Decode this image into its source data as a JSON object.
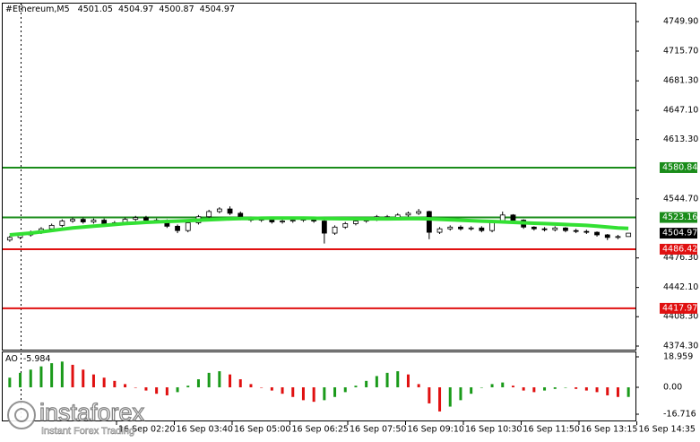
{
  "chart_data": {
    "type": "candlestick",
    "title": "#Ethereum,M5",
    "open": [
      4497,
      4500,
      4503,
      4506,
      4510,
      4514,
      4519,
      4521,
      4518,
      4520,
      4516,
      4517,
      4521,
      4523,
      4520,
      4519,
      4513,
      4508,
      4517,
      4524,
      4530,
      4533,
      4528,
      4522,
      4520,
      4521,
      4518,
      4519,
      4520,
      4521,
      4519,
      4505,
      4512,
      4516,
      4519,
      4521,
      4524,
      4522,
      4526,
      4528,
      4530,
      4506,
      4510,
      4512,
      4510,
      4511,
      4508,
      4518,
      4526,
      4520,
      4512,
      4510,
      4509,
      4511,
      4508,
      4507,
      4506,
      4503,
      4500,
      4501.05
    ],
    "high": [
      4502,
      4505,
      4508,
      4512,
      4516,
      4521,
      4523,
      4523,
      4522,
      4522,
      4519,
      4523,
      4525,
      4525,
      4522,
      4521,
      4515,
      4519,
      4526,
      4532,
      4535,
      4536,
      4530,
      4524,
      4523,
      4523,
      4521,
      4522,
      4523,
      4523,
      4521,
      4514,
      4518,
      4521,
      4523,
      4526,
      4526,
      4528,
      4530,
      4533,
      4531,
      4512,
      4514,
      4514,
      4513,
      4513,
      4520,
      4530,
      4527,
      4521,
      4513,
      4512,
      4513,
      4512,
      4510,
      4509,
      4507,
      4504,
      4503,
      4504.97
    ],
    "low": [
      4495,
      4498,
      4501,
      4504,
      4508,
      4512,
      4517,
      4516,
      4516,
      4514,
      4514,
      4515,
      4519,
      4518,
      4517,
      4511,
      4505,
      4506,
      4515,
      4522,
      4528,
      4526,
      4520,
      4518,
      4518,
      4516,
      4516,
      4517,
      4518,
      4517,
      4493,
      4503,
      4510,
      4514,
      4517,
      4519,
      4520,
      4520,
      4524,
      4526,
      4498,
      4504,
      4508,
      4508,
      4508,
      4506,
      4506,
      4516,
      4518,
      4510,
      4508,
      4507,
      4507,
      4506,
      4505,
      4504,
      4501,
      4497,
      4498,
      4500.87
    ],
    "close": [
      4500,
      4503,
      4506,
      4510,
      4514,
      4519,
      4521,
      4518,
      4520,
      4516,
      4517,
      4521,
      4523,
      4520,
      4519,
      4513,
      4508,
      4517,
      4524,
      4530,
      4533,
      4528,
      4522,
      4520,
      4521,
      4518,
      4519,
      4520,
      4521,
      4519,
      4505,
      4512,
      4516,
      4519,
      4521,
      4524,
      4522,
      4526,
      4528,
      4530,
      4506,
      4510,
      4512,
      4510,
      4511,
      4508,
      4518,
      4526,
      4520,
      4512,
      4510,
      4509,
      4511,
      4508,
      4507,
      4506,
      4503,
      4500,
      4501.05,
      4504.97
    ],
    "ma": {
      "color": "#33e033",
      "values": [
        4503,
        4504,
        4505,
        4506.5,
        4508,
        4509.5,
        4511,
        4512,
        4513,
        4514,
        4515,
        4516,
        4516.8,
        4517.5,
        4518,
        4518.5,
        4519,
        4519.5,
        4520,
        4520.5,
        4521,
        4521.5,
        4522,
        4522,
        4522.3,
        4522.5,
        4522.5,
        4522.5,
        4522.5,
        4522.3,
        4522,
        4521.8,
        4521.7,
        4521.6,
        4521.5,
        4521.5,
        4521.6,
        4521.7,
        4521.8,
        4521.8,
        4521.5,
        4521,
        4520.5,
        4520,
        4519.5,
        4519,
        4518.5,
        4518,
        4517.5,
        4517,
        4516.5,
        4516,
        4515.5,
        4515,
        4514.5,
        4514,
        4513,
        4512,
        4511,
        4510.5
      ]
    },
    "levels": [
      {
        "value": 4580.84,
        "color": "#1a8c1a"
      },
      {
        "value": 4523.16,
        "color": "#1a8c1a"
      },
      {
        "value": 4486.42,
        "color": "#e01010"
      },
      {
        "value": 4417.97,
        "color": "#e01010"
      }
    ],
    "ylim": [
      4370.15,
      4770.7
    ],
    "yticks": [
      {
        "value": 4749.9,
        "label": "4749.90"
      },
      {
        "value": 4715.7,
        "label": "4715.70"
      },
      {
        "value": 4681.3,
        "label": "4681.30"
      },
      {
        "value": 4647.1,
        "label": "4647.10"
      },
      {
        "value": 4613.3,
        "label": "4613.30"
      },
      {
        "value": 4544.7,
        "label": "4544.70"
      },
      {
        "value": 4476.3,
        "label": "4476.30"
      },
      {
        "value": 4442.1,
        "label": "4442.10"
      },
      {
        "value": 4408.3,
        "label": "4408.30"
      },
      {
        "value": 4374.3,
        "label": "4374.30"
      }
    ],
    "x_labels": [
      "16 Sep 02:20",
      "16 Sep 03:40",
      "16 Sep 05:00",
      "16 Sep 06:25",
      "16 Sep 07:50",
      "16 Sep 09:10",
      "16 Sep 10:30",
      "16 Sep 11:50",
      "16 Sep 13:15",
      "16 Sep 14:35"
    ],
    "ao": {
      "name": "AO",
      "up_color": "#1a9a1a",
      "down_color": "#e01010",
      "values": [
        6,
        9,
        11,
        13,
        15,
        16,
        14,
        11,
        8,
        6,
        4,
        2,
        0,
        -2,
        -4,
        -5,
        -3,
        1,
        5,
        9,
        10,
        8,
        5,
        2,
        0,
        -2,
        -4,
        -6,
        -8,
        -9,
        -8,
        -6,
        -3,
        1,
        4,
        7,
        9,
        10,
        8,
        2,
        -10,
        -15,
        -12,
        -8,
        -4,
        0,
        2,
        3,
        1,
        -2,
        -3,
        -2,
        -1,
        0,
        -1,
        -2,
        -3,
        -5,
        -6,
        -5.984
      ],
      "ylim": [
        21.74,
        -20.06
      ],
      "yticks": [
        18.959,
        {
          "value": 0,
          "label": "0.00"
        },
        -16.716
      ]
    },
    "watermark": {
      "brand": "instaforex",
      "tagline": "Instant Forex Trading"
    }
  }
}
